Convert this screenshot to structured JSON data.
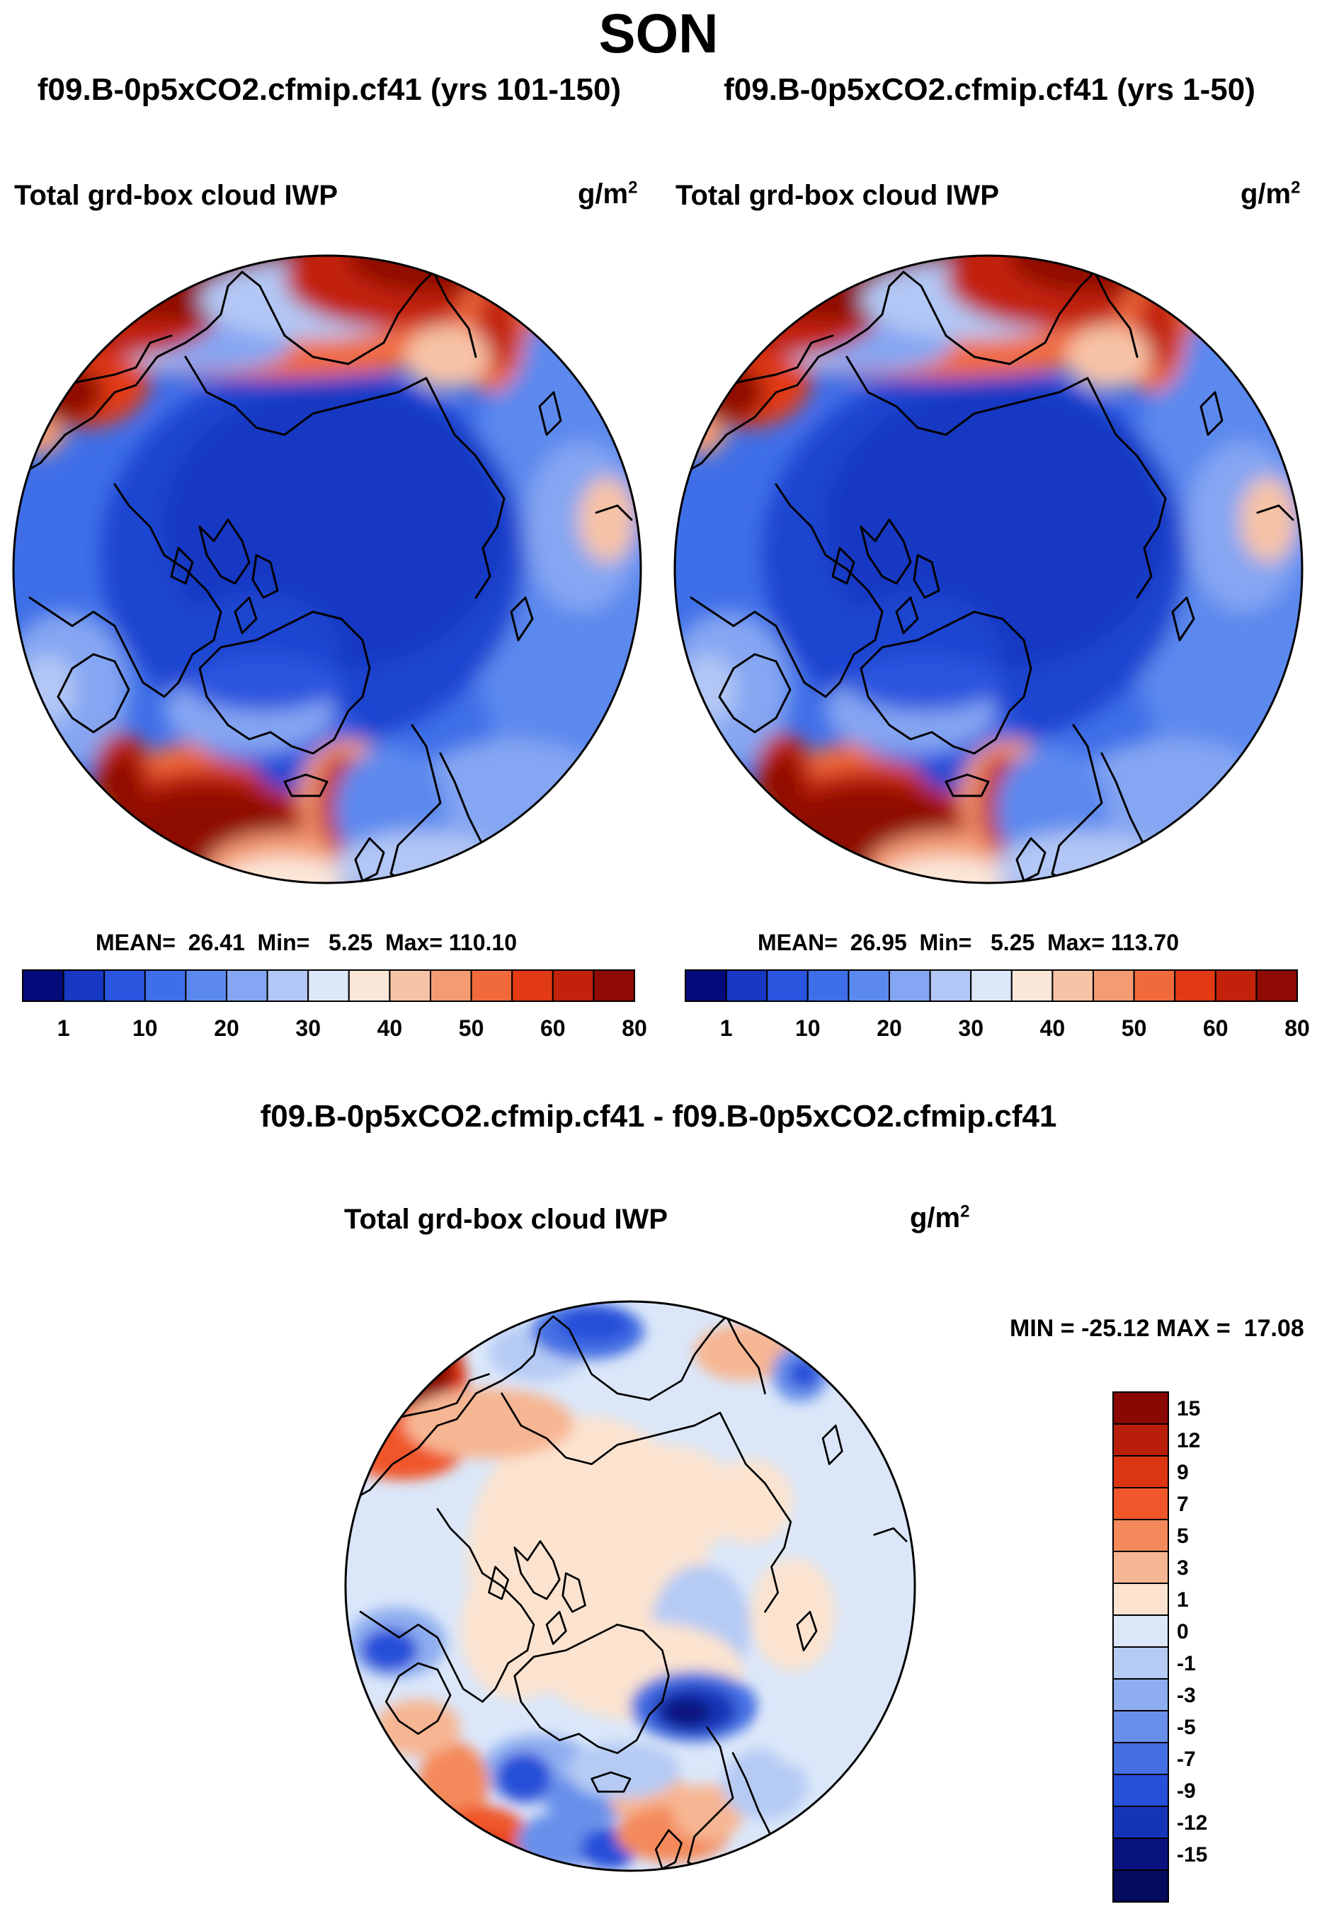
{
  "season": "SON",
  "unit_base": "g/m",
  "unit_exp": "2",
  "panels": {
    "left": {
      "case_title": "f09.B-0p5xCO2.cfmip.cf41 (yrs 101-150)",
      "variable": "Total grd-box cloud IWP",
      "stats": "MEAN=  26.41  Min=   5.25  Max= 110.10"
    },
    "right": {
      "case_title": "f09.B-0p5xCO2.cfmip.cf41 (yrs 1-50)",
      "variable": "Total grd-box cloud IWP",
      "stats": "MEAN=  26.95  Min=   5.25  Max= 113.70"
    },
    "diff": {
      "title": "f09.B-0p5xCO2.cfmip.cf41 - f09.B-0p5xCO2.cfmip.cf41",
      "variable": "Total grd-box cloud IWP",
      "minmax": "MIN = -25.12 MAX =  17.08"
    }
  },
  "chart_data": [
    {
      "type": "heatmap",
      "name": "left-panel",
      "projection": "north-polar-stereographic",
      "title": "Total grd-box cloud IWP",
      "units": "g/m2",
      "colorbar_ticks": [
        "1",
        "10",
        "20",
        "30",
        "40",
        "50",
        "60",
        "80"
      ],
      "colorbar_colors": [
        "#050a7a",
        "#1638c2",
        "#2a55df",
        "#3f6fe8",
        "#5b89ee",
        "#85a6f2",
        "#b2c7f5",
        "#dce7fa",
        "#fbe7d8",
        "#f7c3a6",
        "#f49b74",
        "#f06a3c",
        "#e23a13",
        "#c2210b",
        "#8f0a04"
      ],
      "mean": 26.41,
      "min": 5.25,
      "max": 110.1
    },
    {
      "type": "heatmap",
      "name": "right-panel",
      "projection": "north-polar-stereographic",
      "title": "Total grd-box cloud IWP",
      "units": "g/m2",
      "colorbar_ticks": [
        "1",
        "10",
        "20",
        "30",
        "40",
        "50",
        "60",
        "80"
      ],
      "colorbar_colors": [
        "#050a7a",
        "#1638c2",
        "#2a55df",
        "#3f6fe8",
        "#5b89ee",
        "#85a6f2",
        "#b2c7f5",
        "#dce7fa",
        "#fbe7d8",
        "#f7c3a6",
        "#f49b74",
        "#f06a3c",
        "#e23a13",
        "#c2210b",
        "#8f0a04"
      ],
      "mean": 26.95,
      "min": 5.25,
      "max": 113.7
    },
    {
      "type": "heatmap",
      "name": "difference-panel",
      "projection": "north-polar-stereographic",
      "title": "Total grd-box cloud IWP",
      "units": "g/m2",
      "colorbar_ticks": [
        "15",
        "12",
        "9",
        "7",
        "5",
        "3",
        "1",
        "0",
        "-1",
        "-3",
        "-5",
        "-7",
        "-9",
        "-12",
        "-15"
      ],
      "colorbar_colors": [
        "#8a0804",
        "#b81e0a",
        "#dc3512",
        "#f0572a",
        "#f48a5c",
        "#f7b693",
        "#fbe3cf",
        "#dbe7f9",
        "#b5cbf4",
        "#8eadf0",
        "#6890ea",
        "#4470e3",
        "#2750d9",
        "#1535b8",
        "#08137f",
        "#040a5c"
      ],
      "min": -25.12,
      "max": 17.08
    }
  ]
}
